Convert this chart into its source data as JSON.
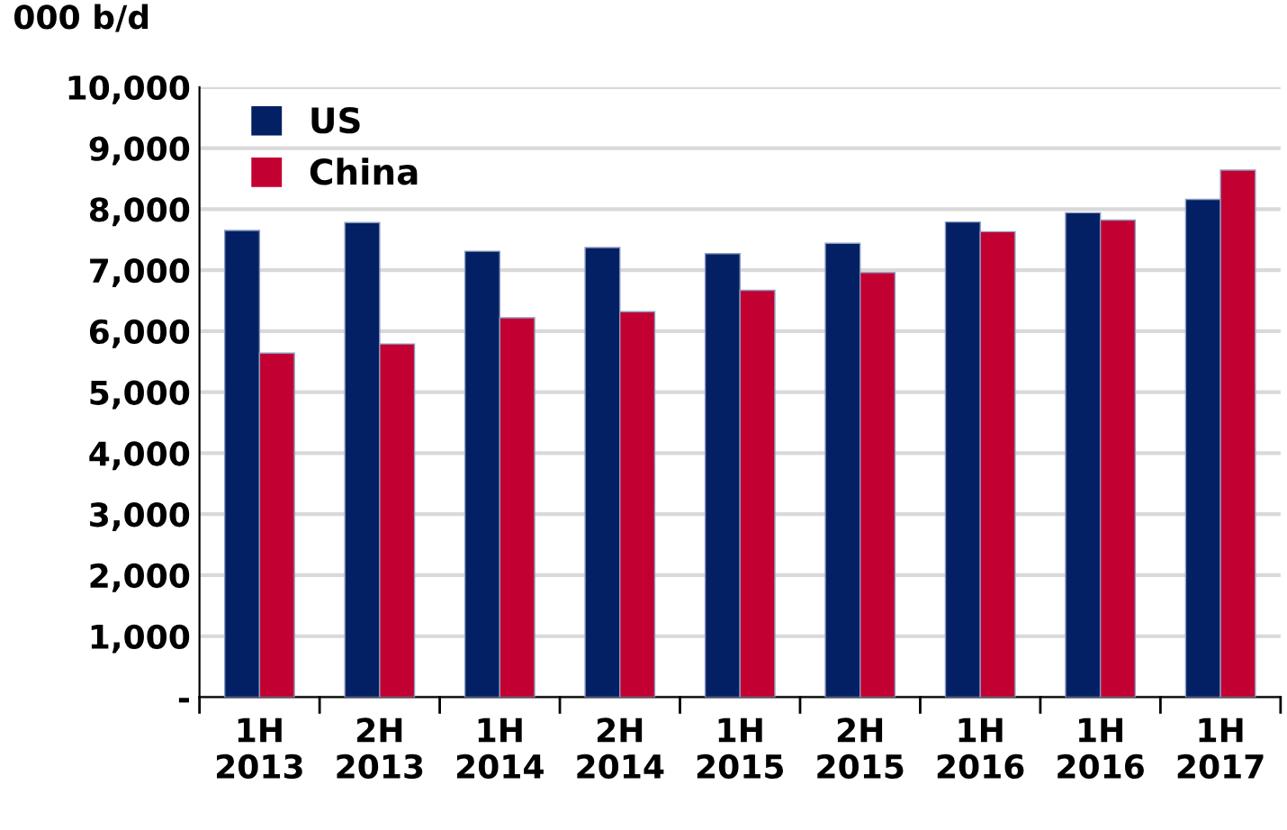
{
  "chart_data": {
    "type": "bar",
    "ylabel": "000 b/d",
    "categories": [
      "1H\n2013",
      "2H\n2013",
      "1H\n2014",
      "2H\n2014",
      "1H\n2015",
      "2H\n2015",
      "1H\n2016",
      "1H\n2016",
      "1H\n2017"
    ],
    "series": [
      {
        "name": "US",
        "color": "#032064",
        "values": [
          7650,
          7780,
          7310,
          7370,
          7270,
          7440,
          7790,
          7940,
          8160
        ]
      },
      {
        "name": "China",
        "color": "#c30032",
        "values": [
          5640,
          5790,
          6220,
          6320,
          6670,
          6960,
          7630,
          7820,
          8640
        ]
      }
    ],
    "ylim": [
      0,
      10000
    ],
    "yticks": [
      {
        "value": 0,
        "label": "-"
      },
      {
        "value": 1000,
        "label": "1,000"
      },
      {
        "value": 2000,
        "label": "2,000"
      },
      {
        "value": 3000,
        "label": "3,000"
      },
      {
        "value": 4000,
        "label": "4,000"
      },
      {
        "value": 5000,
        "label": "5,000"
      },
      {
        "value": 6000,
        "label": "6,000"
      },
      {
        "value": 7000,
        "label": "7,000"
      },
      {
        "value": 8000,
        "label": "8,000"
      },
      {
        "value": 9000,
        "label": "9,000"
      },
      {
        "value": 10000,
        "label": "10,000"
      }
    ],
    "grid": "y",
    "legend": "top left"
  }
}
